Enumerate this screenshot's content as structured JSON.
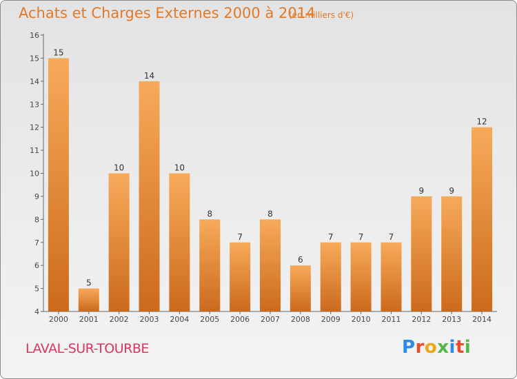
{
  "header": {
    "title": "Achats et Charges Externes 2000 à 2014",
    "unit_note": "(en milliers d'€)"
  },
  "footer": {
    "commune": "LAVAL-SUR-TOURBE",
    "brand_letters": [
      "P",
      "r",
      "o",
      "x",
      "i",
      "t",
      "i"
    ],
    "brand_colors": [
      "#2b8be6",
      "#e94e2a",
      "#f2a516",
      "#54b847",
      "#2b8be6",
      "#e94e2a",
      "#54b847"
    ]
  },
  "colors": {
    "bar_top": "#f7aa5a",
    "bar_bottom": "#cc6a1c",
    "axis": "#666666",
    "title": "#e07a2a",
    "commune": "#d9355f"
  },
  "chart_data": {
    "type": "bar",
    "title": "Achats et Charges Externes 2000 à 2014",
    "subtitle": "(en milliers d'€)",
    "categories": [
      "2000",
      "2001",
      "2002",
      "2003",
      "2004",
      "2005",
      "2006",
      "2007",
      "2008",
      "2009",
      "2010",
      "2011",
      "2012",
      "2013",
      "2014"
    ],
    "values": [
      15,
      5,
      10,
      14,
      10,
      8,
      7,
      8,
      6,
      7,
      7,
      7,
      9,
      9,
      12
    ],
    "ylim": [
      4,
      16
    ],
    "yticks": [
      4,
      5,
      6,
      7,
      8,
      9,
      10,
      11,
      12,
      13,
      14,
      15,
      16
    ],
    "grid": false,
    "xlabel": "",
    "ylabel": ""
  }
}
